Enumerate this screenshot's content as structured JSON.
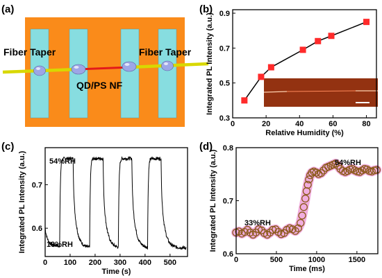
{
  "panels": {
    "a": {
      "letter": "(a)",
      "fiber_taper_left": "Fiber Taper",
      "fiber_taper_right": "Fiber Taper",
      "nanofiber_label": "QD/PS NF",
      "colors": {
        "substrate": "#fa8b1a",
        "pads": "#87dde0",
        "fiber": "#d8d800",
        "nanofiber": "#e31a1a",
        "bead": "#9da6e6"
      }
    },
    "b": {
      "letter": "(b)"
    },
    "c": {
      "letter": "(c)",
      "top_annotation": "54%RH",
      "bottom_annotation": "19%RH"
    },
    "d": {
      "letter": "(d)",
      "low_annotation": "33%RH",
      "high_annotation": "54%RH"
    }
  },
  "chart_data": [
    {
      "id": "b",
      "type": "line",
      "marker": "square",
      "xlabel": "Relative Humidity (%)",
      "ylabel": "Integrated PL Intensity (a.u.)",
      "xlim": [
        0,
        86
      ],
      "ylim": [
        0.3,
        0.92
      ],
      "xticks": [
        0,
        20,
        40,
        60,
        80
      ],
      "yticks": [
        0.3,
        0.5,
        0.7,
        0.9
      ],
      "ytick_labels": [
        "0.3",
        "0.5",
        "0.7",
        "0.9"
      ],
      "x": [
        7,
        17,
        23,
        42,
        51,
        59,
        80
      ],
      "y": [
        0.4,
        0.535,
        0.59,
        0.69,
        0.74,
        0.77,
        0.85
      ],
      "colors": {
        "marker": "#ff2b2b",
        "line": "#000000"
      },
      "inset": "microscope-image"
    },
    {
      "id": "c",
      "type": "line",
      "xlabel": "Time (s)",
      "ylabel": "Integrated PL Intensity (a.u.)",
      "xlim": [
        0,
        570
      ],
      "ylim": [
        0.535,
        0.785
      ],
      "xticks": [
        0,
        100,
        200,
        300,
        400,
        500
      ],
      "yticks": [
        0.6,
        0.7
      ],
      "ytick_labels": [
        "0.6",
        "0.7"
      ],
      "high_level": 0.76,
      "low_level": 0.555,
      "cycles": [
        {
          "rise_start": 58,
          "fall_start": 112
        },
        {
          "rise_start": 178,
          "fall_start": 232
        },
        {
          "rise_start": 293,
          "fall_start": 347
        },
        {
          "rise_start": 410,
          "fall_start": 464
        }
      ],
      "colors": {
        "line": "#000000"
      }
    },
    {
      "id": "d",
      "type": "scatter",
      "marker": "open-circle",
      "xlabel": "Time (ms)",
      "ylabel": "Integrated PL Intensity (a.u.)",
      "xlim": [
        0,
        1760
      ],
      "ylim": [
        0.6,
        0.8
      ],
      "xticks": [
        0,
        500,
        1000,
        1500
      ],
      "yticks": [
        0.6,
        0.7,
        0.8
      ],
      "ytick_labels": [
        "0.6",
        "0.7",
        "0.8"
      ],
      "points": [
        [
          0,
          0.64
        ],
        [
          35,
          0.642
        ],
        [
          70,
          0.638
        ],
        [
          105,
          0.641
        ],
        [
          140,
          0.645
        ],
        [
          175,
          0.64
        ],
        [
          210,
          0.636
        ],
        [
          245,
          0.64
        ],
        [
          280,
          0.646
        ],
        [
          315,
          0.644
        ],
        [
          350,
          0.639
        ],
        [
          385,
          0.636
        ],
        [
          420,
          0.64
        ],
        [
          455,
          0.645
        ],
        [
          490,
          0.646
        ],
        [
          525,
          0.641
        ],
        [
          560,
          0.637
        ],
        [
          595,
          0.639
        ],
        [
          630,
          0.645
        ],
        [
          665,
          0.648
        ],
        [
          700,
          0.646
        ],
        [
          735,
          0.643
        ],
        [
          770,
          0.648
        ],
        [
          800,
          0.658
        ],
        [
          820,
          0.672
        ],
        [
          840,
          0.688
        ],
        [
          860,
          0.704
        ],
        [
          875,
          0.718
        ],
        [
          890,
          0.73
        ],
        [
          905,
          0.74
        ],
        [
          920,
          0.748
        ],
        [
          940,
          0.753
        ],
        [
          965,
          0.755
        ],
        [
          995,
          0.753
        ],
        [
          1025,
          0.75
        ],
        [
          1055,
          0.752
        ],
        [
          1085,
          0.757
        ],
        [
          1115,
          0.762
        ],
        [
          1145,
          0.764
        ],
        [
          1175,
          0.766
        ],
        [
          1205,
          0.768
        ],
        [
          1235,
          0.77
        ],
        [
          1265,
          0.766
        ],
        [
          1295,
          0.76
        ],
        [
          1325,
          0.756
        ],
        [
          1355,
          0.754
        ],
        [
          1385,
          0.756
        ],
        [
          1415,
          0.759
        ],
        [
          1445,
          0.76
        ],
        [
          1475,
          0.757
        ],
        [
          1505,
          0.755
        ],
        [
          1535,
          0.754
        ],
        [
          1565,
          0.757
        ],
        [
          1595,
          0.76
        ],
        [
          1625,
          0.759
        ],
        [
          1655,
          0.756
        ],
        [
          1685,
          0.755
        ],
        [
          1715,
          0.757
        ],
        [
          1745,
          0.758
        ]
      ],
      "colors": {
        "marker_edge": "#8b5a1a",
        "band": "#e04ab8"
      }
    }
  ]
}
